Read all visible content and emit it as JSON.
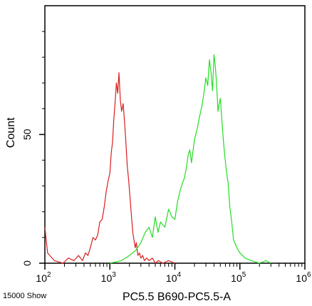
{
  "chart_data": {
    "type": "line",
    "title": "",
    "xlabel": "PC5.5 B690-PC5.5-A",
    "ylabel": "Count",
    "x_scale": "log",
    "xlim": [
      100,
      1000000
    ],
    "ylim": [
      0,
      100
    ],
    "x_ticks": [
      {
        "value": 100,
        "base": "10",
        "exp": "2"
      },
      {
        "value": 1000,
        "base": "10",
        "exp": "3"
      },
      {
        "value": 10000,
        "base": "10",
        "exp": "4"
      },
      {
        "value": 100000,
        "base": "10",
        "exp": "5"
      },
      {
        "value": 1000000,
        "base": "10",
        "exp": "6"
      }
    ],
    "y_ticks": [
      0,
      50
    ],
    "grid": false,
    "series": [
      {
        "color": "#d81e1e",
        "x": [
          100,
          110,
          140,
          190,
          230,
          280,
          330,
          380,
          420,
          460,
          500,
          550,
          600,
          650,
          700,
          760,
          820,
          880,
          940,
          1000,
          1050,
          1100,
          1150,
          1200,
          1260,
          1320,
          1380,
          1450,
          1520,
          1600,
          1680,
          1760,
          1850,
          1950,
          2050,
          2150,
          2250,
          2350,
          2450,
          2550,
          2700,
          2850,
          3000,
          3200,
          3400,
          3700,
          4000,
          4500,
          5000,
          5600,
          6500,
          8000,
          10000
        ],
        "values": [
          14,
          4,
          1,
          0,
          2,
          1,
          3,
          1,
          4,
          3,
          6,
          10,
          9,
          11,
          16,
          17,
          22,
          28,
          32,
          35,
          43,
          47,
          56,
          62,
          70,
          66,
          74,
          63,
          59,
          62,
          55,
          47,
          38,
          32,
          25,
          18,
          12,
          9,
          6,
          8,
          3,
          4,
          2,
          3,
          1,
          2,
          1,
          2,
          0,
          1,
          0,
          1,
          0
        ]
      },
      {
        "color": "#22dd22",
        "x": [
          1000,
          1500,
          2000,
          2500,
          3000,
          3500,
          4000,
          4500,
          5000,
          5500,
          6000,
          7000,
          8000,
          9000,
          10000,
          11000,
          12000,
          13000,
          14000,
          15000,
          16000,
          17000,
          18000,
          20000,
          22000,
          24000,
          26000,
          28000,
          30000,
          32000,
          34000,
          36000,
          38000,
          40000,
          42000,
          44000,
          46000,
          48000,
          50000,
          53000,
          56000,
          59000,
          62000,
          66000,
          70000,
          75000,
          80000,
          90000,
          100000,
          120000,
          150000,
          200000,
          250000,
          300000
        ],
        "values": [
          0,
          1,
          3,
          5,
          8,
          12,
          14,
          10,
          18,
          12,
          16,
          14,
          21,
          18,
          17,
          24,
          28,
          31,
          33,
          37,
          42,
          44,
          39,
          48,
          52,
          57,
          61,
          66,
          72,
          69,
          79,
          74,
          67,
          81,
          76,
          69,
          59,
          62,
          64,
          55,
          47,
          41,
          36,
          31,
          22,
          16,
          9,
          6,
          4,
          2,
          1,
          0,
          1,
          0
        ]
      }
    ],
    "annotations": [
      "15000 Show"
    ]
  }
}
